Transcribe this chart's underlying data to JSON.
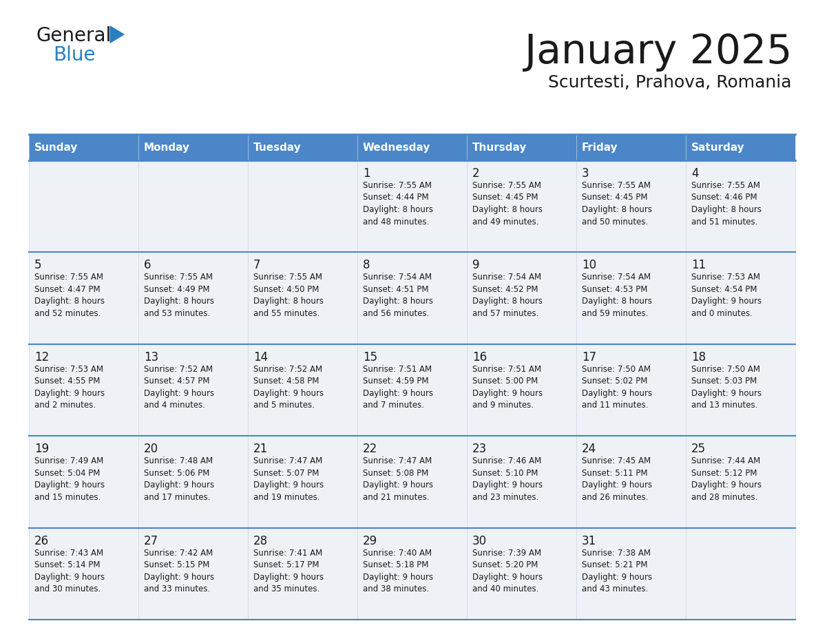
{
  "title": "January 2025",
  "subtitle": "Scurtesti, Prahova, Romania",
  "header_bg": "#4a86c8",
  "header_text": "#ffffff",
  "cell_bg": "#eef2f7",
  "row_line_color": "#4a86c8",
  "grid_line_color": "#c8d4e0",
  "day_headers": [
    "Sunday",
    "Monday",
    "Tuesday",
    "Wednesday",
    "Thursday",
    "Friday",
    "Saturday"
  ],
  "days_data": [
    {
      "day": 1,
      "col": 3,
      "row": 0,
      "sunrise": "7:55 AM",
      "sunset": "4:44 PM",
      "daylight_h": "8 hours",
      "daylight_m": "and 48 minutes."
    },
    {
      "day": 2,
      "col": 4,
      "row": 0,
      "sunrise": "7:55 AM",
      "sunset": "4:45 PM",
      "daylight_h": "8 hours",
      "daylight_m": "and 49 minutes."
    },
    {
      "day": 3,
      "col": 5,
      "row": 0,
      "sunrise": "7:55 AM",
      "sunset": "4:45 PM",
      "daylight_h": "8 hours",
      "daylight_m": "and 50 minutes."
    },
    {
      "day": 4,
      "col": 6,
      "row": 0,
      "sunrise": "7:55 AM",
      "sunset": "4:46 PM",
      "daylight_h": "8 hours",
      "daylight_m": "and 51 minutes."
    },
    {
      "day": 5,
      "col": 0,
      "row": 1,
      "sunrise": "7:55 AM",
      "sunset": "4:47 PM",
      "daylight_h": "8 hours",
      "daylight_m": "and 52 minutes."
    },
    {
      "day": 6,
      "col": 1,
      "row": 1,
      "sunrise": "7:55 AM",
      "sunset": "4:49 PM",
      "daylight_h": "8 hours",
      "daylight_m": "and 53 minutes."
    },
    {
      "day": 7,
      "col": 2,
      "row": 1,
      "sunrise": "7:55 AM",
      "sunset": "4:50 PM",
      "daylight_h": "8 hours",
      "daylight_m": "and 55 minutes."
    },
    {
      "day": 8,
      "col": 3,
      "row": 1,
      "sunrise": "7:54 AM",
      "sunset": "4:51 PM",
      "daylight_h": "8 hours",
      "daylight_m": "and 56 minutes."
    },
    {
      "day": 9,
      "col": 4,
      "row": 1,
      "sunrise": "7:54 AM",
      "sunset": "4:52 PM",
      "daylight_h": "8 hours",
      "daylight_m": "and 57 minutes."
    },
    {
      "day": 10,
      "col": 5,
      "row": 1,
      "sunrise": "7:54 AM",
      "sunset": "4:53 PM",
      "daylight_h": "8 hours",
      "daylight_m": "and 59 minutes."
    },
    {
      "day": 11,
      "col": 6,
      "row": 1,
      "sunrise": "7:53 AM",
      "sunset": "4:54 PM",
      "daylight_h": "9 hours",
      "daylight_m": "and 0 minutes."
    },
    {
      "day": 12,
      "col": 0,
      "row": 2,
      "sunrise": "7:53 AM",
      "sunset": "4:55 PM",
      "daylight_h": "9 hours",
      "daylight_m": "and 2 minutes."
    },
    {
      "day": 13,
      "col": 1,
      "row": 2,
      "sunrise": "7:52 AM",
      "sunset": "4:57 PM",
      "daylight_h": "9 hours",
      "daylight_m": "and 4 minutes."
    },
    {
      "day": 14,
      "col": 2,
      "row": 2,
      "sunrise": "7:52 AM",
      "sunset": "4:58 PM",
      "daylight_h": "9 hours",
      "daylight_m": "and 5 minutes."
    },
    {
      "day": 15,
      "col": 3,
      "row": 2,
      "sunrise": "7:51 AM",
      "sunset": "4:59 PM",
      "daylight_h": "9 hours",
      "daylight_m": "and 7 minutes."
    },
    {
      "day": 16,
      "col": 4,
      "row": 2,
      "sunrise": "7:51 AM",
      "sunset": "5:00 PM",
      "daylight_h": "9 hours",
      "daylight_m": "and 9 minutes."
    },
    {
      "day": 17,
      "col": 5,
      "row": 2,
      "sunrise": "7:50 AM",
      "sunset": "5:02 PM",
      "daylight_h": "9 hours",
      "daylight_m": "and 11 minutes."
    },
    {
      "day": 18,
      "col": 6,
      "row": 2,
      "sunrise": "7:50 AM",
      "sunset": "5:03 PM",
      "daylight_h": "9 hours",
      "daylight_m": "and 13 minutes."
    },
    {
      "day": 19,
      "col": 0,
      "row": 3,
      "sunrise": "7:49 AM",
      "sunset": "5:04 PM",
      "daylight_h": "9 hours",
      "daylight_m": "and 15 minutes."
    },
    {
      "day": 20,
      "col": 1,
      "row": 3,
      "sunrise": "7:48 AM",
      "sunset": "5:06 PM",
      "daylight_h": "9 hours",
      "daylight_m": "and 17 minutes."
    },
    {
      "day": 21,
      "col": 2,
      "row": 3,
      "sunrise": "7:47 AM",
      "sunset": "5:07 PM",
      "daylight_h": "9 hours",
      "daylight_m": "and 19 minutes."
    },
    {
      "day": 22,
      "col": 3,
      "row": 3,
      "sunrise": "7:47 AM",
      "sunset": "5:08 PM",
      "daylight_h": "9 hours",
      "daylight_m": "and 21 minutes."
    },
    {
      "day": 23,
      "col": 4,
      "row": 3,
      "sunrise": "7:46 AM",
      "sunset": "5:10 PM",
      "daylight_h": "9 hours",
      "daylight_m": "and 23 minutes."
    },
    {
      "day": 24,
      "col": 5,
      "row": 3,
      "sunrise": "7:45 AM",
      "sunset": "5:11 PM",
      "daylight_h": "9 hours",
      "daylight_m": "and 26 minutes."
    },
    {
      "day": 25,
      "col": 6,
      "row": 3,
      "sunrise": "7:44 AM",
      "sunset": "5:12 PM",
      "daylight_h": "9 hours",
      "daylight_m": "and 28 minutes."
    },
    {
      "day": 26,
      "col": 0,
      "row": 4,
      "sunrise": "7:43 AM",
      "sunset": "5:14 PM",
      "daylight_h": "9 hours",
      "daylight_m": "and 30 minutes."
    },
    {
      "day": 27,
      "col": 1,
      "row": 4,
      "sunrise": "7:42 AM",
      "sunset": "5:15 PM",
      "daylight_h": "9 hours",
      "daylight_m": "and 33 minutes."
    },
    {
      "day": 28,
      "col": 2,
      "row": 4,
      "sunrise": "7:41 AM",
      "sunset": "5:17 PM",
      "daylight_h": "9 hours",
      "daylight_m": "and 35 minutes."
    },
    {
      "day": 29,
      "col": 3,
      "row": 4,
      "sunrise": "7:40 AM",
      "sunset": "5:18 PM",
      "daylight_h": "9 hours",
      "daylight_m": "and 38 minutes."
    },
    {
      "day": 30,
      "col": 4,
      "row": 4,
      "sunrise": "7:39 AM",
      "sunset": "5:20 PM",
      "daylight_h": "9 hours",
      "daylight_m": "and 40 minutes."
    },
    {
      "day": 31,
      "col": 5,
      "row": 4,
      "sunrise": "7:38 AM",
      "sunset": "5:21 PM",
      "daylight_h": "9 hours",
      "daylight_m": "and 43 minutes."
    }
  ],
  "num_rows": 5,
  "num_cols": 7,
  "title_color": "#1a1a1a",
  "subtitle_color": "#1a1a1a",
  "day_num_color": "#1a1a1a",
  "info_color": "#1a1a1a",
  "logo_general_color": "#1a1a1a",
  "logo_blue_color": "#2a7fc1"
}
